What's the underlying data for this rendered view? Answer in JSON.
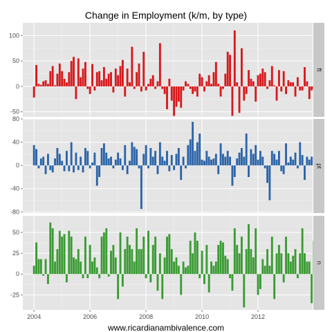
{
  "chart_data": {
    "type": "bar",
    "title": "Change in Employment (k/m, by type)",
    "caption": "www.ricardianambivalence.com",
    "xlabel": "",
    "ylabel": "",
    "xlim": [
      2003.6,
      2013.95
    ],
    "x_ticks": [
      2004,
      2006,
      2008,
      2010,
      2012
    ],
    "x_tick_labels": [
      "2004",
      "2006",
      "2008",
      "2010",
      "2012"
    ],
    "x_start": 2004.0,
    "x_step": 0.08333,
    "grid": true,
    "colors": {
      "panel_bg": "#e5e5e5",
      "grid": "#ffffff",
      "strip_bg": "#c8c8c8"
    },
    "panels": [
      {
        "strip": "ft",
        "color": "#d7191c",
        "ylim": [
          -60,
          125
        ],
        "y_ticks": [
          -50,
          0,
          50,
          100
        ],
        "values": [
          -22,
          42,
          5,
          3,
          10,
          12,
          5,
          30,
          40,
          2,
          25,
          45,
          30,
          15,
          8,
          28,
          50,
          58,
          -25,
          55,
          18,
          35,
          48,
          -5,
          -15,
          44,
          -8,
          28,
          30,
          12,
          38,
          15,
          25,
          28,
          -12,
          35,
          22,
          40,
          52,
          -20,
          35,
          8,
          78,
          -5,
          28,
          45,
          -10,
          68,
          -8,
          5,
          15,
          22,
          -5,
          10,
          85,
          -5,
          -15,
          -45,
          15,
          -28,
          -58,
          -40,
          -30,
          -42,
          -8,
          10,
          5,
          -5,
          -15,
          -10,
          -20,
          25,
          18,
          -10,
          10,
          22,
          5,
          28,
          48,
          5,
          -20,
          -5,
          25,
          68,
          62,
          -58,
          110,
          8,
          -52,
          75,
          -28,
          -15,
          32,
          15,
          10,
          -30,
          22,
          25,
          35,
          28,
          -5,
          12,
          40,
          2,
          -28,
          32,
          -10,
          30,
          -15,
          12,
          8,
          8,
          -20,
          18,
          -8,
          -8,
          38,
          10,
          -25,
          -8,
          -5,
          -10
        ]
      },
      {
        "strip": "pt",
        "color": "#2b64a8",
        "ylim": [
          -82,
          80
        ],
        "y_ticks": [
          -80,
          -40,
          0,
          40,
          80
        ],
        "values": [
          35,
          28,
          -5,
          12,
          15,
          -15,
          20,
          -8,
          -12,
          12,
          30,
          20,
          8,
          -10,
          25,
          -10,
          40,
          -12,
          22,
          -8,
          15,
          -12,
          30,
          25,
          -5,
          5,
          22,
          -35,
          -20,
          30,
          38,
          22,
          12,
          15,
          -5,
          10,
          22,
          12,
          -8,
          35,
          -15,
          8,
          40,
          32,
          28,
          -5,
          -75,
          20,
          35,
          -5,
          30,
          15,
          25,
          -15,
          40,
          15,
          8,
          25,
          -10,
          18,
          -8,
          20,
          30,
          -25,
          15,
          -5,
          35,
          45,
          75,
          25,
          40,
          55,
          10,
          8,
          25,
          15,
          10,
          12,
          20,
          -15,
          38,
          20,
          15,
          25,
          15,
          -35,
          -20,
          12,
          22,
          30,
          15,
          55,
          -20,
          28,
          20,
          35,
          10,
          25,
          15,
          -5,
          -30,
          -60,
          25,
          20,
          10,
          25,
          -10,
          -15,
          38,
          5,
          15,
          10,
          22,
          -5,
          40,
          18,
          -25,
          15,
          10,
          15
        ]
      },
      {
        "strip": "n",
        "color": "#3a9b33",
        "ylim": [
          -43,
          70
        ],
        "y_ticks": [
          -25,
          0,
          25,
          50
        ],
        "values": [
          10,
          38,
          18,
          18,
          -2,
          18,
          -12,
          62,
          55,
          15,
          30,
          52,
          45,
          48,
          -10,
          52,
          45,
          20,
          18,
          30,
          15,
          -5,
          45,
          -5,
          35,
          15,
          20,
          8,
          -5,
          45,
          50,
          55,
          -3,
          28,
          35,
          20,
          -30,
          50,
          -15,
          30,
          45,
          35,
          30,
          15,
          55,
          30,
          30,
          45,
          -5,
          52,
          -10,
          35,
          45,
          -20,
          25,
          -30,
          20,
          45,
          48,
          30,
          15,
          20,
          10,
          -25,
          15,
          8,
          10,
          40,
          25,
          50,
          40,
          -5,
          28,
          -12,
          35,
          -22,
          15,
          10,
          15,
          35,
          40,
          38,
          22,
          18,
          -5,
          -20,
          55,
          35,
          25,
          45,
          -40,
          30,
          60,
          30,
          20,
          55,
          -25,
          -18,
          18,
          10,
          30,
          10,
          45,
          -30,
          25,
          35,
          25,
          -10,
          45,
          25,
          15,
          22,
          30,
          -5,
          25,
          55,
          25,
          15,
          15,
          -35,
          40,
          10
        ]
      }
    ]
  }
}
